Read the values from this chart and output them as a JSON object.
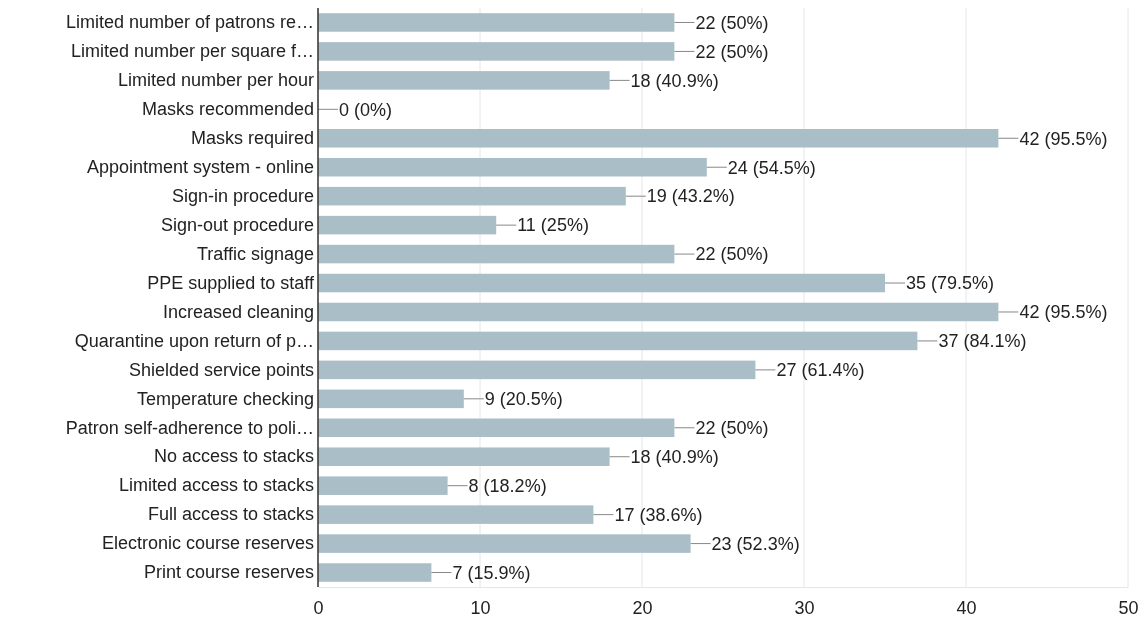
{
  "chart_data": {
    "type": "bar",
    "orientation": "horizontal",
    "categories": [
      "Limited number of patrons re…",
      "Limited number per square f…",
      "Limited number per hour",
      "Masks recommended",
      "Masks required",
      "Appointment system - online",
      "Sign-in procedure",
      "Sign-out procedure",
      "Traffic signage",
      "PPE supplied to staff",
      "Increased cleaning",
      "Quarantine upon return of p…",
      "Shielded service points",
      "Temperature checking",
      "Patron self-adherence to poli…",
      "No access to stacks",
      "Limited access to stacks",
      "Full access to stacks",
      "Electronic course reserves",
      "Print course reserves"
    ],
    "values": [
      22,
      22,
      18,
      0,
      42,
      24,
      19,
      11,
      22,
      35,
      42,
      37,
      27,
      9,
      22,
      18,
      8,
      17,
      23,
      7
    ],
    "value_labels": [
      "22 (50%)",
      "22 (50%)",
      "18 (40.9%)",
      "0 (0%)",
      "42 (95.5%)",
      "24 (54.5%)",
      "19 (43.2%)",
      "11 (25%)",
      "22 (50%)",
      "35 (79.5%)",
      "42 (95.5%)",
      "37 (84.1%)",
      "27 (61.4%)",
      "9 (20.5%)",
      "22 (50%)",
      "18 (40.9%)",
      "8 (18.2%)",
      "17 (38.6%)",
      "23 (52.3%)",
      "7 (15.9%)"
    ],
    "color": "#a9bec6",
    "xlim": [
      0,
      50
    ],
    "xticks": [
      0,
      10,
      20,
      30,
      40,
      50
    ],
    "grid": "x"
  }
}
